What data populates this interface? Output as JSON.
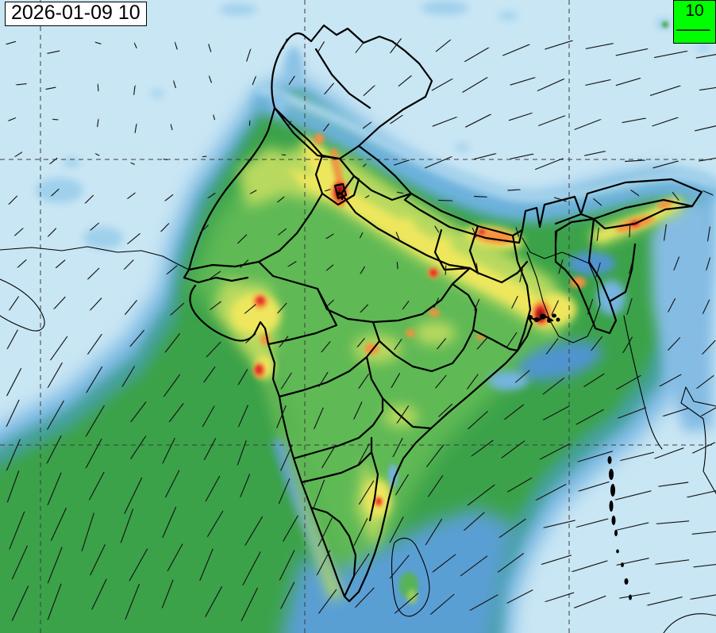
{
  "header": {
    "timestamp": "2026-01-09 10"
  },
  "wind_legend": {
    "label": "10",
    "box_color": "#00ff00"
  },
  "map": {
    "graticule": {
      "vertical_x": [
        51,
        384,
        717
      ],
      "horizontal_y": [
        201,
        561
      ]
    },
    "graticule_style": {
      "color": "#3c3c3c",
      "dash": "6 5"
    },
    "vector_color": "#151515",
    "field_palette_low_to_high": [
      "#c9e6f4",
      "#9fd0ec",
      "#74b4e0",
      "#4488c8",
      "#3f9894",
      "#3ba24a",
      "#5eb954",
      "#8fcb5a",
      "#b8d95f",
      "#eee75d",
      "#fbc853",
      "#f6913f",
      "#ee6632",
      "#e03326",
      "#a51815",
      "#7c0d0d"
    ]
  }
}
